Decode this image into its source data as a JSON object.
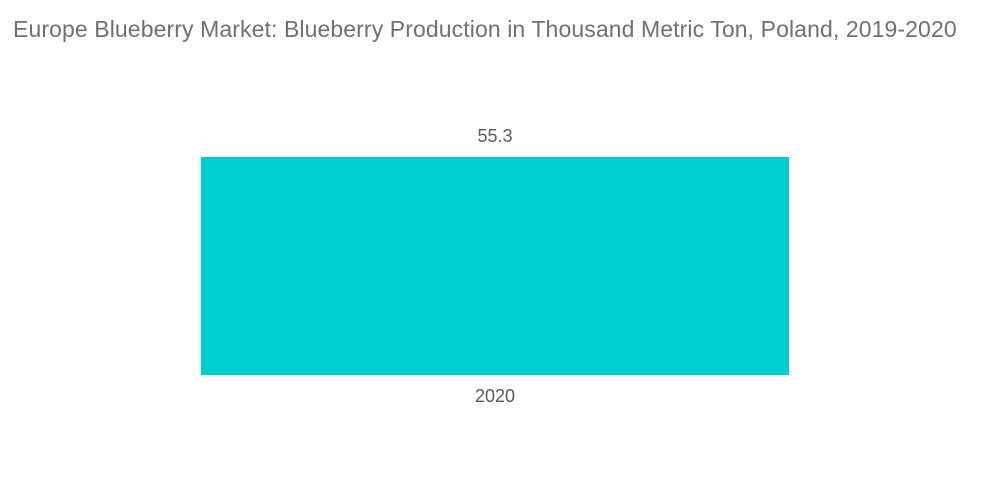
{
  "chart_data": {
    "type": "bar",
    "title": "Europe Blueberry Market: Blueberry Production in Thousand Metric Ton, Poland, 2019-2020",
    "categories": [
      "2020"
    ],
    "values": [
      55.3
    ],
    "series": [
      {
        "name": "Blueberry Production in Thousand Metric Ton",
        "values": [
          55.3
        ]
      }
    ],
    "xlabel": "",
    "ylabel": "",
    "ylim": [
      0,
      60
    ],
    "grid": false,
    "legend": "none",
    "data_labels": [
      "55.3"
    ],
    "colors": {
      "bar": "#00cdce",
      "title_text": "#6f7073",
      "label_text": "#595a5c",
      "background": "#ffffff"
    }
  }
}
